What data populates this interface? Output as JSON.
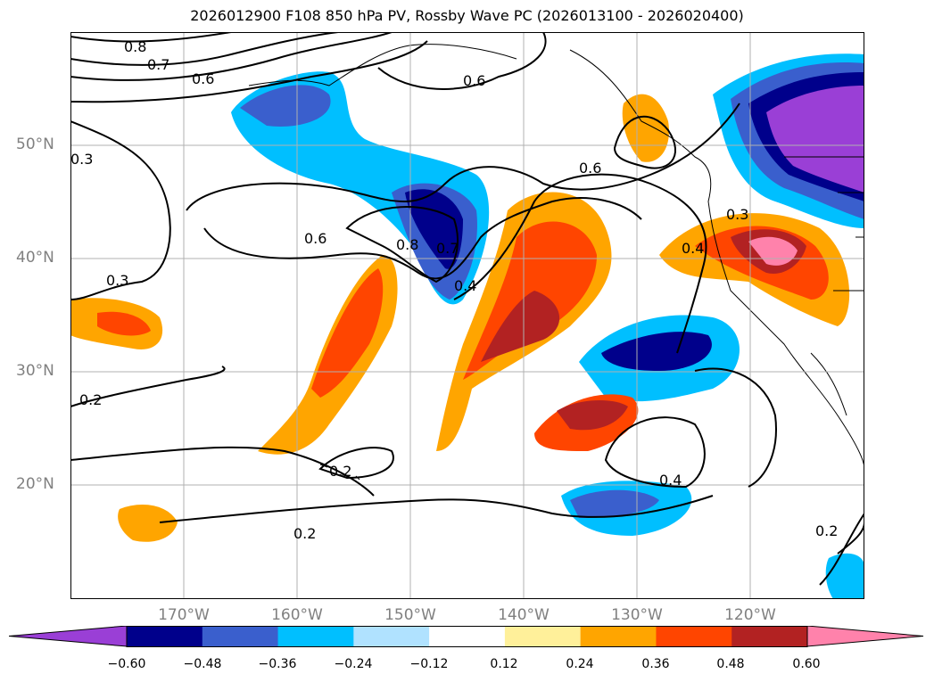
{
  "title": "2026012900 F108 850 hPa PV, Rossby Wave PC (2026013100 - 2026020400)",
  "lat_labels": [
    "50°N",
    "40°N",
    "30°N",
    "20°N"
  ],
  "lon_labels": [
    "170°W",
    "160°W",
    "150°W",
    "140°W",
    "130°W",
    "120°W"
  ],
  "colorbar": {
    "ticks": [
      "−0.60",
      "−0.48",
      "−0.36",
      "−0.24",
      "−0.12",
      "0.12",
      "0.24",
      "0.36",
      "0.48",
      "0.60"
    ],
    "colors": [
      "#9a3fd6",
      "#00008b",
      "#3a5fcd",
      "#00bfff",
      "#b0e2ff",
      "#ffffff",
      "#fff09a",
      "#ffa500",
      "#ff4500",
      "#b22222",
      "#ff82ab"
    ]
  },
  "contour_labels": [
    "0.8",
    "0.7",
    "0.6",
    "0.6",
    "0.3",
    "0.6",
    "0.6",
    "0.8",
    "0.7",
    "0.4",
    "0.3",
    "0.2",
    "0.2",
    "0.2",
    "0.4",
    "0.3",
    "0.4",
    "0.2"
  ]
}
